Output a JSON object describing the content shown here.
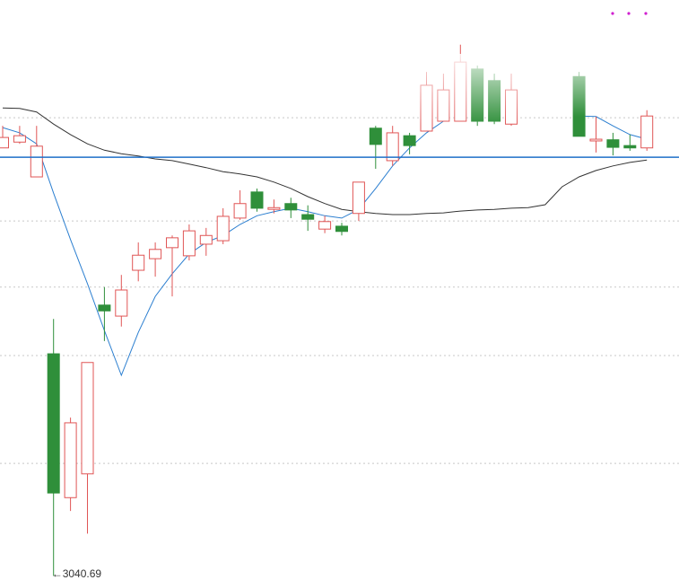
{
  "chart_data": {
    "type": "candlestick",
    "annotation": "←3040.69",
    "categories": [
      null,
      null,
      null,
      null,
      null,
      null,
      null,
      null,
      null,
      null,
      null,
      null,
      null,
      null,
      null,
      null,
      null,
      null,
      null,
      null,
      null,
      null,
      null,
      null,
      null,
      null,
      null,
      null,
      null,
      null,
      null,
      null,
      null,
      null,
      null,
      null,
      null,
      null,
      null
    ],
    "open": [
      3114.5,
      3115.5,
      3109.5,
      3079.0,
      3054.2,
      3058.3,
      3087.4,
      3085.5,
      3093.4,
      3095.4,
      3097.3,
      3095.9,
      3097.9,
      3098.5,
      3102.4,
      3106.9,
      3103.9,
      3104.9,
      3103.0,
      3100.5,
      3101.0,
      3103.2,
      3117.9,
      3112.3,
      3116.6,
      3117.4,
      3119.1,
      3119.1,
      3128.1,
      3126.1,
      3118.6,
      null,
      null,
      null,
      3126.8,
      3115.7,
      3115.9,
      3114.9,
      3114.5
    ],
    "high": [
      3118.3,
      3118.3,
      3118.3,
      3085.0,
      3068.0,
      3077.5,
      3090.5,
      3092.6,
      3098.2,
      3098.2,
      3099.4,
      3101.3,
      3100.7,
      3104.1,
      3107.2,
      3107.5,
      3105.6,
      3105.9,
      3104.6,
      3102.8,
      3101.6,
      3108.6,
      3118.3,
      3118.3,
      3117.1,
      3127.6,
      3127.3,
      3132.3,
      3128.7,
      3127.3,
      3127.3,
      null,
      null,
      null,
      3127.6,
      3119.9,
      3117.1,
      3116.8,
      3121.0
    ],
    "low": [
      3114.5,
      3115.2,
      3109.5,
      3040.69,
      3051.9,
      3048.0,
      3081.2,
      3083.7,
      3091.5,
      3092.3,
      3088.9,
      3095.1,
      3095.9,
      3097.9,
      3102.1,
      3103.5,
      3103.2,
      3102.4,
      3100.2,
      3099.8,
      3099.4,
      3101.9,
      3110.9,
      3111.4,
      3113.4,
      3117.4,
      3119.1,
      3119.1,
      3118.3,
      3118.6,
      3118.3,
      null,
      null,
      null,
      3116.5,
      3113.7,
      3113.2,
      3114.0,
      3114.0
    ],
    "close": [
      3116.3,
      3116.6,
      3114.8,
      3055.0,
      3067.1,
      3077.5,
      3086.4,
      3090.0,
      3096.0,
      3097.0,
      3099.0,
      3100.2,
      3099.4,
      3102.7,
      3104.9,
      3104.1,
      3104.2,
      3103.8,
      3102.2,
      3101.8,
      3100.1,
      3108.6,
      3115.1,
      3117.1,
      3114.9,
      3125.3,
      3124.5,
      3129.3,
      3119.1,
      3119.1,
      3124.5,
      null,
      null,
      null,
      3116.5,
      3116.0,
      3114.6,
      3114.5,
      3120.0
    ],
    "up_color": "#e05555",
    "down_color": "#2f8f3a",
    "lines": [
      {
        "color": "#2c7fd0",
        "values": [
          3118.0,
          3117.1,
          3115.2,
          3106.7,
          3098.7,
          3091.1,
          3083.0,
          3075.3,
          3082.7,
          3088.9,
          3092.8,
          3096.2,
          3098.2,
          3099.4,
          3101.3,
          3102.8,
          3103.5,
          3104.1,
          3103.5,
          3102.8,
          3102.4,
          3103.9,
          3107.5,
          3111.4,
          3114.5,
          3117.1,
          3119.1,
          null,
          null,
          null,
          null,
          null,
          null,
          null,
          3120.0,
          3119.9,
          3118.3,
          3116.8,
          3116.0
        ]
      },
      {
        "color": "#333333",
        "values": [
          3121.4,
          3121.3,
          3120.7,
          3118.6,
          3116.8,
          3115.2,
          3114.1,
          3113.5,
          3113.1,
          3112.6,
          3112.3,
          3111.7,
          3111.1,
          3110.4,
          3110.0,
          3109.5,
          3108.6,
          3107.5,
          3106.1,
          3104.9,
          3103.9,
          3103.5,
          3103.2,
          3103.0,
          3103.0,
          3103.2,
          3103.3,
          3103.6,
          3103.8,
          3103.9,
          3104.1,
          3104.2,
          3104.7,
          3107.8,
          3109.5,
          3110.6,
          3111.4,
          3112.0,
          3112.4
        ]
      }
    ],
    "hline": {
      "value": 3112.9,
      "color": "#1f6fc8"
    },
    "grid_values": [
      3119.7,
      3101.9,
      3090.5,
      3078.7,
      3060.1
    ],
    "ylim": [
      3040,
      3140
    ],
    "grid": true
  }
}
